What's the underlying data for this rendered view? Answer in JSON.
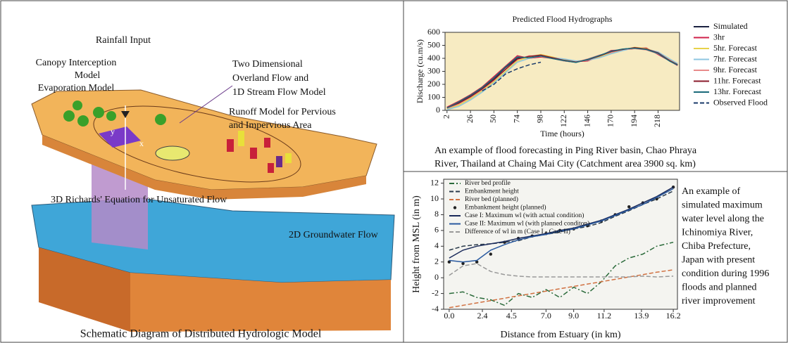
{
  "diagram": {
    "title": "Schematic Diagram of Distributed Hydrologic Model",
    "rainfall": "Rainfall Input",
    "canopy": [
      "Canopy Interception",
      "Model",
      "Evaporation Model"
    ],
    "overland": [
      "Two Dimensional",
      "Overland Flow and",
      "1D Stream Flow Model"
    ],
    "runoff": [
      "Runoff Model for Pervious",
      "and Impervious Area"
    ],
    "richards": "3D Richards' Equation for Unsaturated Flow",
    "groundwater": "2D Groundwater Flow",
    "axis_x": "x",
    "axis_y": "y"
  },
  "chart_data": [
    {
      "type": "line",
      "title": "Predicted Flood Hydrographs",
      "x_label": "Time (hours)",
      "y_label": "Discharge (cu.m/s)",
      "x": [
        2,
        14,
        26,
        38,
        50,
        62,
        74,
        86,
        98,
        110,
        122,
        134,
        146,
        158,
        170,
        182,
        194,
        206,
        218,
        230,
        238
      ],
      "xlim": [
        0,
        240
      ],
      "xticks": [
        2,
        26,
        50,
        74,
        98,
        122,
        146,
        170,
        194,
        218
      ],
      "ylim": [
        0,
        600
      ],
      "yticks": [
        0,
        100,
        200,
        300,
        400,
        500,
        600
      ],
      "grid": false,
      "legend": "right",
      "series": [
        {
          "name": "Simulated",
          "color": "#1a2040",
          "style": "solid",
          "values": [
            20,
            60,
            110,
            170,
            240,
            330,
            400,
            410,
            420,
            400,
            380,
            370,
            390,
            420,
            450,
            470,
            480,
            470,
            440,
            380,
            350
          ]
        },
        {
          "name": "3hr",
          "color": "#d0204a",
          "style": "solid",
          "values": [
            25,
            70,
            120,
            180,
            260,
            340,
            420,
            400,
            410,
            400,
            385,
            375,
            380,
            415,
            460,
            465,
            475,
            480,
            430,
            380,
            345
          ]
        },
        {
          "name": "5hr. Forecast",
          "color": "#e8d24a",
          "style": "solid",
          "values": [
            10,
            40,
            90,
            150,
            220,
            300,
            380,
            410,
            430,
            410,
            390,
            375,
            385,
            410,
            440,
            465,
            485,
            475,
            445,
            390,
            355
          ]
        },
        {
          "name": "7hr. Forecast",
          "color": "#8ec6e0",
          "style": "solid",
          "values": [
            5,
            30,
            80,
            140,
            210,
            290,
            370,
            400,
            420,
            405,
            395,
            380,
            385,
            405,
            435,
            460,
            480,
            470,
            450,
            395,
            360
          ]
        },
        {
          "name": "9hr. Forecast",
          "color": "#e88a8a",
          "style": "solid",
          "values": [
            15,
            50,
            100,
            160,
            230,
            320,
            390,
            420,
            415,
            400,
            380,
            370,
            395,
            425,
            445,
            470,
            475,
            465,
            435,
            385,
            350
          ]
        },
        {
          "name": "11hr. Forecast",
          "color": "#8a1a2a",
          "style": "solid",
          "values": [
            20,
            55,
            105,
            165,
            235,
            315,
            395,
            415,
            425,
            405,
            385,
            372,
            388,
            418,
            452,
            468,
            482,
            472,
            442,
            382,
            352
          ]
        },
        {
          "name": "13hr. Forecast",
          "color": "#1a6a7a",
          "style": "solid",
          "values": [
            18,
            65,
            115,
            175,
            250,
            335,
            410,
            405,
            418,
            398,
            382,
            368,
            392,
            422,
            455,
            472,
            478,
            468,
            438,
            378,
            348
          ]
        },
        {
          "name": "Observed Flood",
          "color": "#1a3a6a",
          "style": "dashed",
          "values": [
            null,
            null,
            null,
            150,
            200,
            280,
            320,
            350,
            370,
            null,
            null,
            null,
            null,
            null,
            null,
            null,
            null,
            null,
            null,
            null,
            null
          ]
        }
      ],
      "caption": [
        "An example of flood forecasting in Ping River basin, Chao Phraya",
        "River, Thailand at Chaing Mai City (Catchment area 3900 sq. km)"
      ]
    },
    {
      "type": "line",
      "x_label": "Distance from Estuary (in km)",
      "y_label": "Height from MSL (in m)",
      "x": [
        0,
        1,
        2,
        3,
        4,
        5,
        6,
        7,
        8,
        9,
        10,
        11,
        12,
        13,
        14,
        15,
        16.2
      ],
      "xlim": [
        -0.4,
        16.5
      ],
      "xticks": [
        {
          "value": 0,
          "label": "0.0"
        },
        2.4,
        4.5,
        {
          "value": 7,
          "label": "7.0"
        },
        {
          "value": 9,
          "label": "9.0"
        },
        11.2,
        13.9,
        16.2
      ],
      "ylim": [
        -4,
        12.5
      ],
      "yticks": [
        -4,
        -2,
        0,
        2,
        4,
        6,
        8,
        10,
        12
      ],
      "grid": false,
      "legend": "upper left",
      "series": [
        {
          "name": "River bed profile",
          "color": "#2a6a3a",
          "style": "dashdot",
          "values": [
            -2,
            -1.8,
            -2.5,
            -2.8,
            -3.5,
            -2,
            -2.5,
            -1.5,
            -2.5,
            -1.2,
            -2,
            -0.5,
            1.5,
            2.5,
            3,
            4,
            4.5
          ]
        },
        {
          "name": "Embankment height",
          "color": "#2a3a4a",
          "style": "dashed",
          "values": [
            3.5,
            4,
            4.2,
            4.3,
            4.5,
            4.7,
            5.2,
            5.5,
            5.8,
            6.2,
            6.5,
            7,
            7.8,
            8.5,
            9.3,
            10,
            11
          ]
        },
        {
          "name": "River bed (planned)",
          "color": "#d07040",
          "style": "dashed",
          "values": [
            -3.8,
            -3.5,
            -3.2,
            -2.9,
            -2.6,
            -2.3,
            -2,
            -1.7,
            -1.4,
            -1.1,
            -0.8,
            -0.5,
            -0.2,
            0.1,
            0.4,
            0.7,
            1
          ]
        },
        {
          "name": "Embankment height (planned)",
          "color": "#222222",
          "style": "dots",
          "values": [
            2,
            1.8,
            2,
            3,
            4.5,
            5,
            5.3,
            5.6,
            6,
            6.2,
            6.6,
            7.2,
            8,
            9,
            9.5,
            10,
            11.5
          ]
        },
        {
          "name": "Case I: Maximum wl (with actual condition)",
          "color": "#1a2a5a",
          "style": "solid",
          "values": [
            2.5,
            3.5,
            4,
            4.3,
            4.6,
            5,
            5.3,
            5.6,
            6,
            6.3,
            6.8,
            7.3,
            8,
            8.7,
            9.5,
            10.3,
            11.5
          ]
        },
        {
          "name": "Case II: Maximum wl (with planned conditon)",
          "color": "#2a5aa0",
          "style": "solid",
          "values": [
            2.2,
            2,
            2.2,
            3.5,
            4.2,
            4.8,
            5.2,
            5.5,
            5.9,
            6.2,
            6.7,
            7.2,
            7.9,
            8.6,
            9.3,
            10.2,
            11.3
          ]
        },
        {
          "name": "Difference of wl in m (Case I - Case II)",
          "color": "#999999",
          "style": "dashed",
          "values": [
            0.3,
            1.5,
            1.8,
            0.8,
            0.4,
            0.2,
            0.1,
            0.1,
            0.1,
            0.1,
            0.1,
            0.1,
            0.1,
            0.1,
            0.2,
            0.1,
            0.2
          ]
        }
      ],
      "caption": [
        "An example of",
        "simulated maximum",
        "water level along the",
        "Ichinomiya River,",
        "Chiba Prefecture,",
        "Japan with present",
        "condition during 1996",
        "floods and planned",
        "river improvement"
      ]
    }
  ]
}
